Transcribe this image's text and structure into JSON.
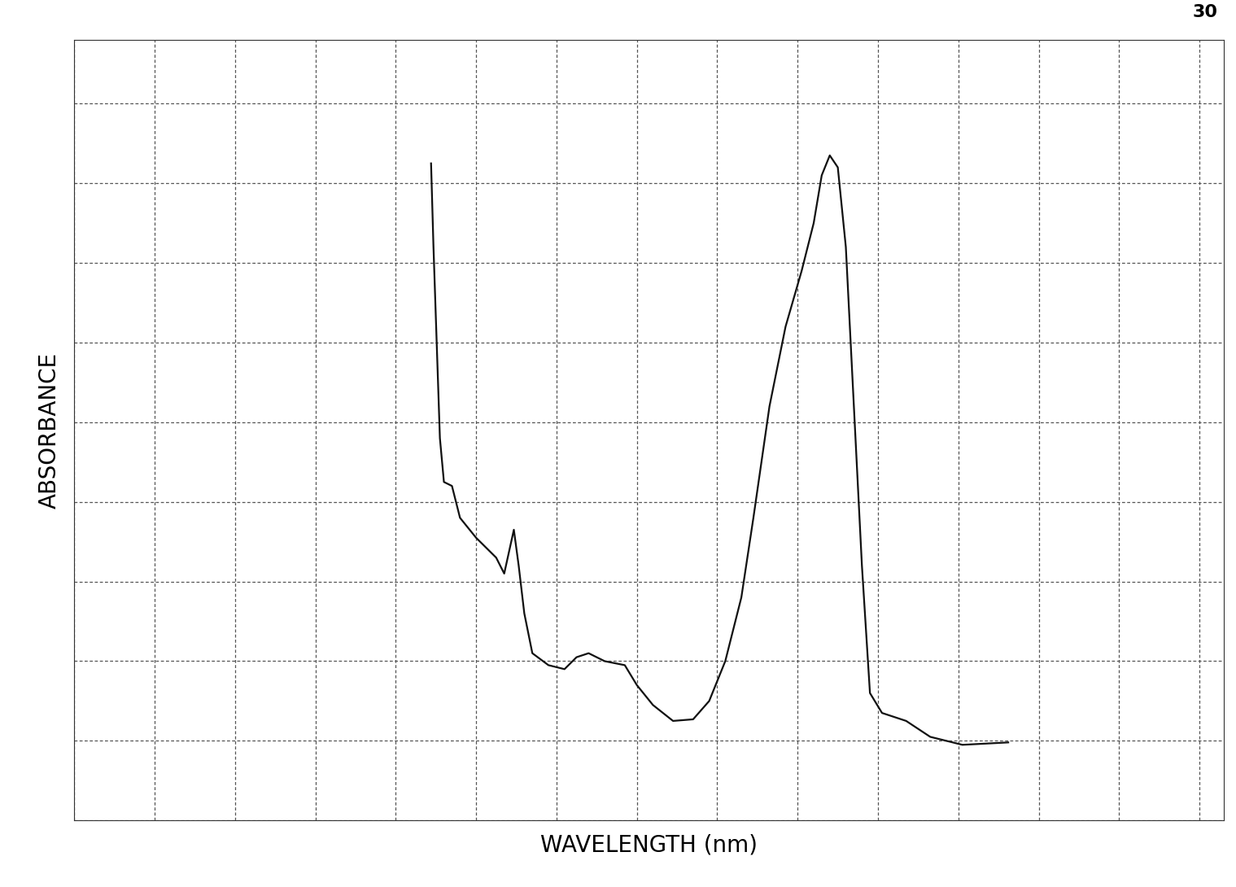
{
  "chart_data": {
    "type": "line",
    "xlabel": "WAVELENGTH (nm)",
    "ylabel": "ABSORBANCE",
    "annotations": [
      "30"
    ],
    "x": [
      44.4,
      44.7,
      45.2,
      45.5,
      46,
      47,
      48,
      50,
      52.5,
      53.5,
      54.7,
      55.3,
      56,
      57,
      59,
      61,
      62.5,
      64,
      66,
      68.5,
      70,
      72,
      74.5,
      77,
      79,
      81,
      83,
      84.5,
      86.5,
      88.5,
      90.5,
      92,
      93,
      94,
      95,
      96,
      97,
      98,
      99,
      100.5,
      103.5,
      106.5,
      110.5,
      116.2
    ],
    "values": [
      82.5,
      72,
      57,
      48,
      42.5,
      42,
      38,
      35.5,
      33,
      31,
      36.5,
      32,
      26,
      21,
      19.5,
      19,
      20.5,
      21,
      20,
      19.5,
      17,
      14.5,
      12.5,
      12.7,
      15,
      20,
      28,
      38,
      52,
      62,
      69,
      75,
      81,
      83.5,
      82,
      72,
      52,
      32,
      16,
      13.5,
      12.5,
      10.5,
      9.5,
      9.8
    ],
    "color": "#111111",
    "xlim": [
      0,
      143
    ],
    "ylim": [
      0,
      98
    ],
    "xticks": [
      0,
      10,
      20,
      30,
      40,
      50,
      60,
      70,
      80,
      90,
      100,
      110,
      120,
      130,
      140
    ],
    "yticks": [
      0,
      10,
      20,
      30,
      40,
      50,
      60,
      70,
      80,
      90
    ],
    "grid": true,
    "tick_labels": false
  }
}
